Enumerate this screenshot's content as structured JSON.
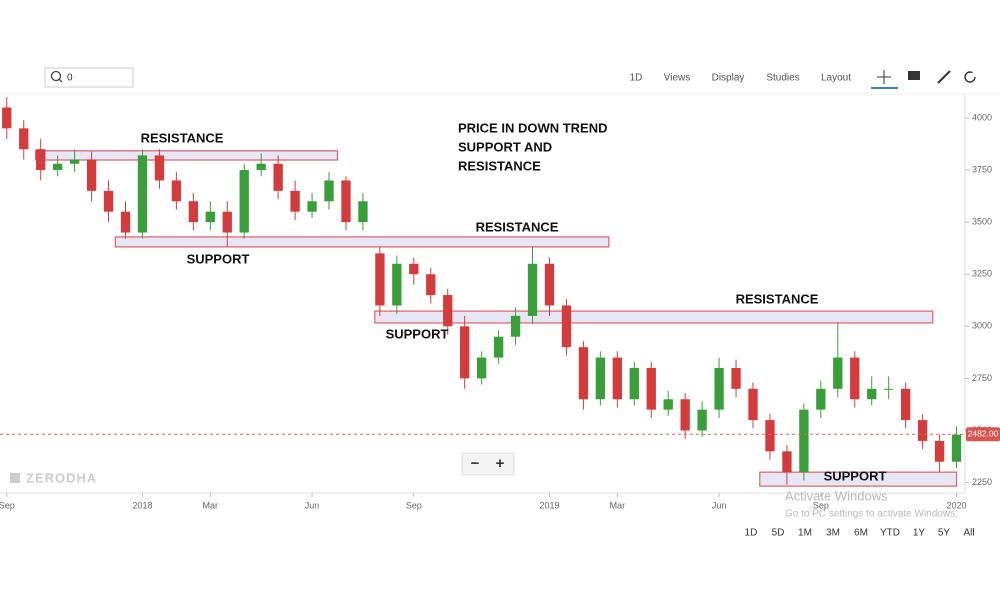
{
  "toolbar": {
    "search": "0",
    "menus": [
      "1D",
      "Views",
      "Display",
      "Studies",
      "Layout"
    ]
  },
  "chart_data": {
    "type": "candlestick",
    "open": [
      4050,
      3950,
      3850,
      3750,
      3780,
      3800,
      3650,
      3550,
      3450,
      3820,
      3700,
      3600,
      3500,
      3550,
      3450,
      3750,
      3780,
      3650,
      3550,
      3600,
      3700,
      3500,
      3350,
      3100,
      3300,
      3250,
      3150,
      3000,
      2750,
      2850,
      2950,
      3050,
      3300,
      3100,
      2900,
      2650,
      2850,
      2650,
      2800,
      2600,
      2650,
      2500,
      2600,
      2800,
      2700,
      2550,
      2400,
      2300,
      2600,
      2700,
      2850,
      2650,
      2700,
      2700,
      2550,
      2450,
      2350
    ],
    "high": [
      4100,
      3990,
      3900,
      3820,
      3850,
      3840,
      3700,
      3600,
      3850,
      3850,
      3740,
      3640,
      3600,
      3600,
      3780,
      3830,
      3820,
      3700,
      3640,
      3740,
      3720,
      3640,
      3380,
      3340,
      3330,
      3280,
      3180,
      3050,
      2880,
      2980,
      3090,
      3380,
      3330,
      3130,
      2930,
      2880,
      2880,
      2830,
      2830,
      2690,
      2680,
      2640,
      2850,
      2840,
      2730,
      2580,
      2430,
      2630,
      2740,
      3020,
      2880,
      2760,
      2760,
      2730,
      2580,
      2480,
      2520
    ],
    "low": [
      3900,
      3800,
      3700,
      3720,
      3740,
      3600,
      3500,
      3420,
      3420,
      3660,
      3560,
      3460,
      3460,
      3380,
      3420,
      3720,
      3610,
      3510,
      3520,
      3560,
      3460,
      3460,
      3050,
      3060,
      3200,
      3110,
      2960,
      2700,
      2720,
      2820,
      2910,
      3010,
      3050,
      2860,
      2600,
      2620,
      2610,
      2620,
      2560,
      2570,
      2460,
      2470,
      2560,
      2660,
      2510,
      2360,
      2240,
      2260,
      2560,
      2660,
      2610,
      2620,
      2650,
      2510,
      2410,
      2300,
      2320
    ],
    "close": [
      3950,
      3850,
      3750,
      3780,
      3800,
      3650,
      3550,
      3450,
      3820,
      3700,
      3600,
      3500,
      3550,
      3450,
      3750,
      3780,
      3650,
      3550,
      3600,
      3700,
      3500,
      3600,
      3100,
      3300,
      3250,
      3150,
      3000,
      2750,
      2850,
      2950,
      3050,
      3300,
      3100,
      2900,
      2650,
      2850,
      2650,
      2800,
      2600,
      2650,
      2500,
      2600,
      2800,
      2700,
      2550,
      2400,
      2300,
      2600,
      2700,
      2850,
      2650,
      2700,
      2700,
      2550,
      2450,
      2350,
      2480
    ],
    "up_color": "#3a9e3a",
    "down_color": "#d23c3c",
    "xlim": [
      -0.4,
      56.5
    ],
    "xticks": [
      {
        "value": 0,
        "label": "Sep"
      },
      {
        "value": 8,
        "label": "2018"
      },
      {
        "value": 12,
        "label": "Mar"
      },
      {
        "value": 18,
        "label": "Jun"
      },
      {
        "value": 24,
        "label": "Sep"
      },
      {
        "value": 32,
        "label": "2019"
      },
      {
        "value": 36,
        "label": "Mar"
      },
      {
        "value": 42,
        "label": "Jun"
      },
      {
        "value": 48,
        "label": "Sep"
      },
      {
        "value": 56,
        "label": "2020"
      }
    ],
    "ylim": [
      2200,
      4110
    ],
    "yticks": [
      2250,
      2500,
      2750,
      3000,
      3250,
      3500,
      3750,
      4000
    ],
    "last_price": {
      "value": 2482,
      "label": "2482.00"
    },
    "zones": [
      {
        "x0": 1.7,
        "x1": 19.5,
        "top": 3842,
        "bottom": 3798
      },
      {
        "x0": 6.4,
        "x1": 35.5,
        "top": 3429,
        "bottom": 3381
      },
      {
        "x0": 21.7,
        "x1": 54.6,
        "top": 3073,
        "bottom": 3016
      },
      {
        "x0": 44.4,
        "x1": 56.0,
        "top": 2300,
        "bottom": 2233
      }
    ],
    "annotations": [
      "RESISTANCE",
      "SUPPORT",
      "RESISTANCE",
      "SUPPORT",
      "RESISTANCE",
      "SUPPORT"
    ],
    "note": [
      "PRICE IN DOWN TREND",
      "SUPPORT AND",
      "RESISTANCE"
    ],
    "watermark": "ZERODHA"
  },
  "zoom": [
    "−",
    "+"
  ],
  "ranges": [
    "1D",
    "5D",
    "1M",
    "3M",
    "6M",
    "YTD",
    "1Y",
    "5Y",
    "All"
  ],
  "overlay": [
    "Activate Windows",
    "Go to PC settings to activate Windows."
  ]
}
